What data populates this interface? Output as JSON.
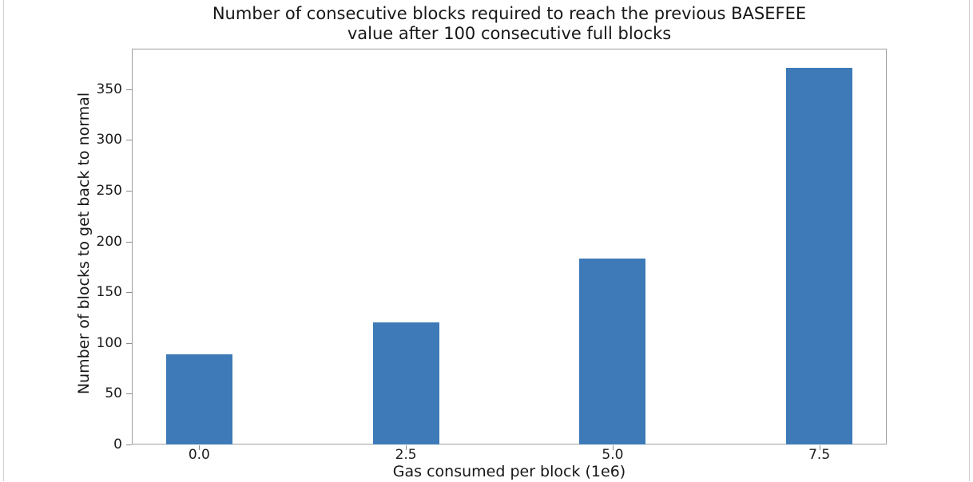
{
  "page": {
    "background": "#ffffff",
    "edge_line_color": "#cfcfcf"
  },
  "chart_data": {
    "type": "bar",
    "title": "Number of consecutive blocks required to reach the previous BASEFEE value after 100 consecutive full blocks",
    "title_lines": [
      "Number of consecutive blocks required to reach the previous BASEFEE",
      "value after 100 consecutive full blocks"
    ],
    "xlabel": "Gas consumed per block (1e6)",
    "ylabel": "Number of blocks to get back to normal",
    "categories": [
      "0.0",
      "2.5",
      "5.0",
      "7.5"
    ],
    "x_values": [
      0,
      2.5,
      5.0,
      7.5
    ],
    "values": [
      89,
      120,
      183,
      371
    ],
    "y_ticks": [
      0,
      50,
      100,
      150,
      200,
      250,
      300,
      350
    ],
    "ylim": [
      0,
      390
    ],
    "bar_color": "#3d7ab7",
    "spine_color": "#9f9f9f",
    "tick_color": "#8c8c8c",
    "text_color": "#171717",
    "grid": false,
    "legend": false
  }
}
